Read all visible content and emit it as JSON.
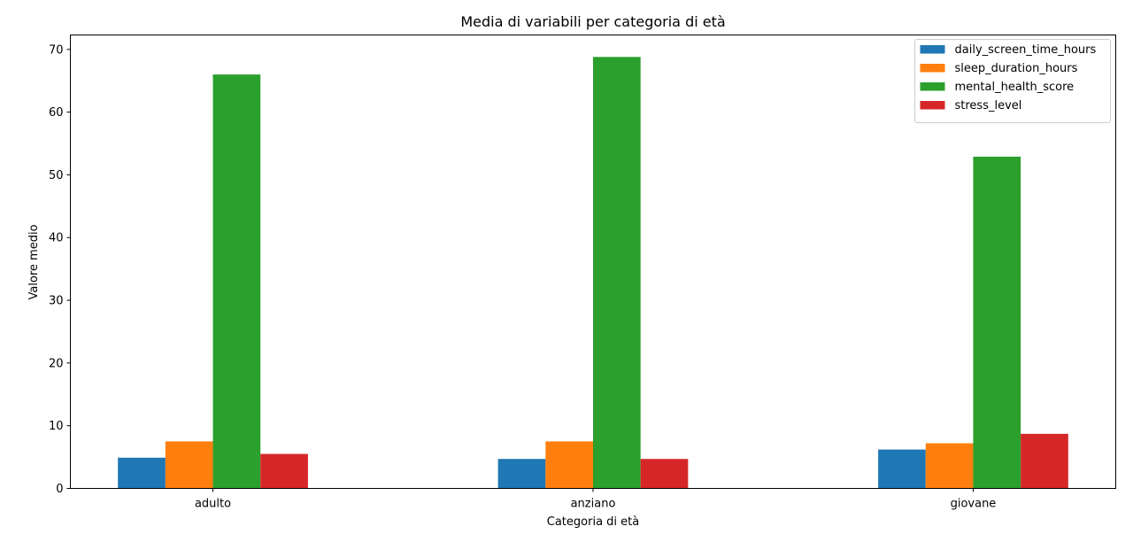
{
  "chart_data": {
    "type": "bar",
    "title": "Media di variabili per categoria di età",
    "xlabel": "Categoria di età",
    "ylabel": "Valore medio",
    "categories": [
      "adulto",
      "anziano",
      "giovane"
    ],
    "ylim": [
      0,
      72.3
    ],
    "yticks": [
      0,
      10,
      20,
      30,
      40,
      50,
      60,
      70
    ],
    "ytick_labels": [
      "0",
      "10",
      "20",
      "30",
      "40",
      "50",
      "60",
      "70"
    ],
    "grid": false,
    "legend_position": "top-right",
    "series": [
      {
        "name": "daily_screen_time_hours",
        "color": "#1f77b4",
        "values": [
          4.9,
          4.7,
          6.2
        ]
      },
      {
        "name": "sleep_duration_hours",
        "color": "#ff7f0e",
        "values": [
          7.5,
          7.5,
          7.2
        ]
      },
      {
        "name": "mental_health_score",
        "color": "#2ca02c",
        "values": [
          66.0,
          68.8,
          52.9
        ]
      },
      {
        "name": "stress_level",
        "color": "#d62728",
        "values": [
          5.5,
          4.7,
          8.7
        ]
      }
    ]
  }
}
